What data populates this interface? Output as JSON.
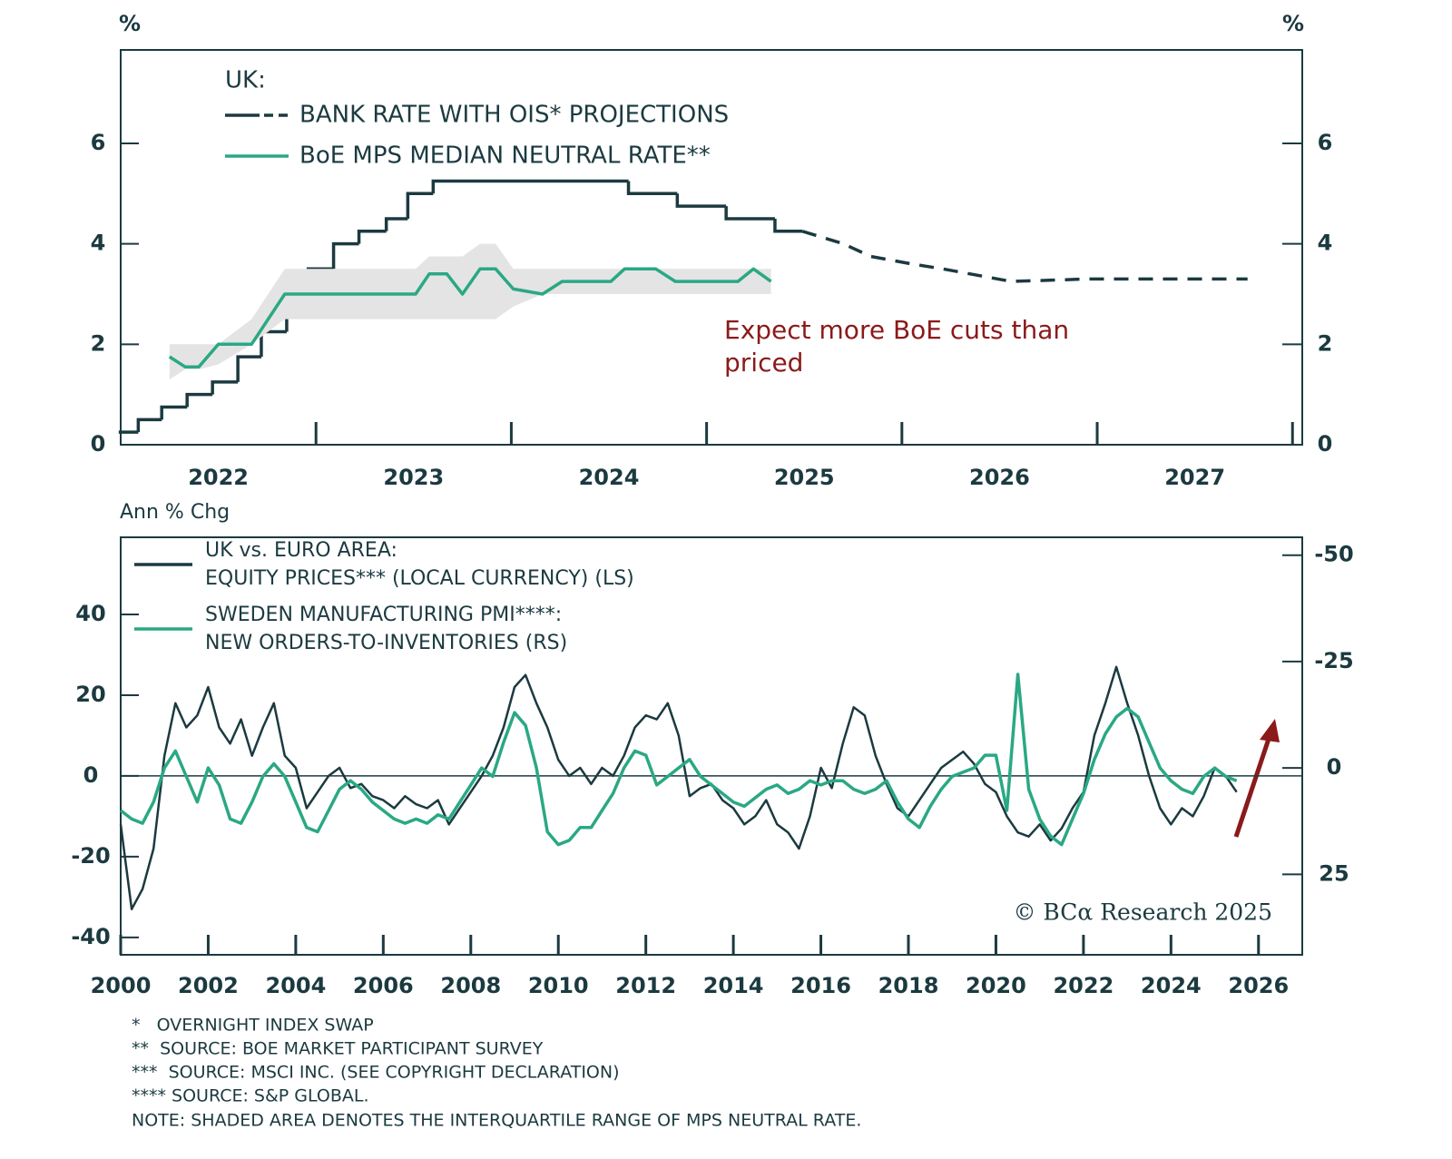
{
  "chart_data": [
    {
      "type": "line",
      "y_unit_left": "%",
      "y_unit_right": "%",
      "legend_title": "UK:",
      "xlim": [
        2022,
        2028.05
      ],
      "xticks": [
        {
          "value": 2022.5,
          "label": "2022"
        },
        {
          "value": 2023.5,
          "label": "2023"
        },
        {
          "value": 2024.5,
          "label": "2024"
        },
        {
          "value": 2025.5,
          "label": "2025"
        },
        {
          "value": 2026.5,
          "label": "2026"
        },
        {
          "value": 2027.5,
          "label": "2027"
        }
      ],
      "year_marks": [
        2023,
        2024,
        2025,
        2026,
        2027,
        2028
      ],
      "ylim": [
        0,
        7.86
      ],
      "yticks": [
        0,
        2,
        4,
        6
      ],
      "y2lim": [
        0,
        7.86
      ],
      "y2ticks": [
        0,
        2,
        4,
        6
      ],
      "series": [
        {
          "name": "BANK RATE WITH OIS* PROJECTIONS",
          "color": "#1b3a40",
          "step": true,
          "x": [
            2021.99,
            2022.09,
            2022.21,
            2022.34,
            2022.47,
            2022.6,
            2022.72,
            2022.85,
            2022.96,
            2023.09,
            2023.22,
            2023.36,
            2023.47,
            2023.6,
            2024.6,
            2024.85,
            2025.1,
            2025.35,
            2025.49
          ],
          "values": [
            0.25,
            0.5,
            0.75,
            1.0,
            1.25,
            1.75,
            2.25,
            3.0,
            3.5,
            4.0,
            4.25,
            4.5,
            5.0,
            5.25,
            5.0,
            4.75,
            4.5,
            4.25,
            4.25
          ],
          "projection_x": [
            2025.49,
            2025.7,
            2025.84,
            2026.05,
            2026.21,
            2026.56,
            2026.95,
            2027.77
          ],
          "projection_values": [
            4.25,
            4.0,
            3.75,
            3.6,
            3.5,
            3.25,
            3.3,
            3.3
          ]
        },
        {
          "name": "BoE MPS MEDIAN NEUTRAL RATE**",
          "color": "#2aa884",
          "band_color": "#e4e4e4",
          "x": [
            2022.25,
            2022.33,
            2022.4,
            2022.5,
            2022.67,
            2022.84,
            2023.51,
            2023.58,
            2023.67,
            2023.75,
            2023.84,
            2023.92,
            2024.01,
            2024.16,
            2024.26,
            2024.51,
            2024.58,
            2024.74,
            2024.84,
            2025.16,
            2025.24,
            2025.33
          ],
          "values": [
            1.75,
            1.55,
            1.55,
            2.0,
            2.0,
            3.0,
            3.0,
            3.4,
            3.4,
            3.0,
            3.5,
            3.5,
            3.1,
            3.0,
            3.25,
            3.25,
            3.5,
            3.5,
            3.25,
            3.25,
            3.5,
            3.25
          ],
          "band_low": [
            1.3,
            1.5,
            1.5,
            1.6,
            2.0,
            2.5,
            2.5,
            2.5,
            2.5,
            2.5,
            2.5,
            2.5,
            2.75,
            3.0,
            3.0,
            3.0,
            3.0,
            3.0,
            3.0,
            3.0,
            3.0,
            3.0
          ],
          "band_high": [
            2.0,
            2.0,
            2.0,
            2.0,
            2.5,
            3.5,
            3.5,
            3.75,
            3.75,
            3.75,
            4.0,
            4.0,
            3.5,
            3.5,
            3.5,
            3.5,
            3.5,
            3.5,
            3.5,
            3.5,
            3.5,
            3.5
          ]
        }
      ],
      "annotation": {
        "lines": [
          "Expect more BoE cuts than",
          "priced"
        ],
        "color": "#8b1a1a"
      }
    },
    {
      "type": "line",
      "y_label": "Ann % Chg",
      "xlim": [
        2000,
        2027
      ],
      "xticks": [
        2000,
        2002,
        2004,
        2006,
        2008,
        2010,
        2012,
        2014,
        2016,
        2018,
        2020,
        2022,
        2024,
        2026
      ],
      "ylim": [
        -44.3,
        59.1
      ],
      "yticks": [
        -40,
        -20,
        0,
        20,
        40
      ],
      "y2lim": [
        43.9,
        -54.2
      ],
      "y2ticks": [
        -50,
        -25,
        0,
        25
      ],
      "zero_line": true,
      "x": [
        2000,
        2000.25,
        2000.5,
        2000.75,
        2001,
        2001.25,
        2001.5,
        2001.75,
        2002,
        2002.25,
        2002.5,
        2002.75,
        2003,
        2003.25,
        2003.5,
        2003.75,
        2004,
        2004.25,
        2004.5,
        2004.75,
        2005,
        2005.25,
        2005.5,
        2005.75,
        2006,
        2006.25,
        2006.5,
        2006.75,
        2007,
        2007.25,
        2007.5,
        2007.75,
        2008,
        2008.25,
        2008.5,
        2008.75,
        2009,
        2009.25,
        2009.5,
        2009.75,
        2010,
        2010.25,
        2010.5,
        2010.75,
        2011,
        2011.25,
        2011.5,
        2011.75,
        2012,
        2012.25,
        2012.5,
        2012.75,
        2013,
        2013.25,
        2013.5,
        2013.75,
        2014,
        2014.25,
        2014.5,
        2014.75,
        2015,
        2015.25,
        2015.5,
        2015.75,
        2016,
        2016.25,
        2016.5,
        2016.75,
        2017,
        2017.25,
        2017.5,
        2017.75,
        2018,
        2018.25,
        2018.5,
        2018.75,
        2019,
        2019.25,
        2019.5,
        2019.75,
        2020,
        2020.25,
        2020.5,
        2020.75,
        2021,
        2021.25,
        2021.5,
        2021.75,
        2022,
        2022.25,
        2022.5,
        2022.75,
        2023,
        2023.25,
        2023.5,
        2023.75,
        2024,
        2024.25,
        2024.5,
        2024.75,
        2025,
        2025.25,
        2025.5
      ],
      "series": [
        {
          "name": [
            "UK vs. EURO AREA:",
            "EQUITY PRICES*** (LOCAL CURRENCY) (LS)"
          ],
          "color": "#1b3a40",
          "values": [
            -12,
            -33,
            -28,
            -18,
            5,
            18,
            12,
            15,
            22,
            12,
            8,
            14,
            5,
            12,
            18,
            5,
            2,
            -8,
            -4,
            0,
            2,
            -3,
            -2,
            -5,
            -6,
            -8,
            -5,
            -7,
            -8,
            -6,
            -12,
            -8,
            -4,
            0,
            5,
            12,
            22,
            25,
            18,
            12,
            4,
            0,
            2,
            -2,
            2,
            0,
            5,
            12,
            15,
            14,
            18,
            10,
            -5,
            -3,
            -2,
            -6,
            -8,
            -12,
            -10,
            -6,
            -12,
            -14,
            -18,
            -10,
            2,
            -3,
            8,
            17,
            15,
            5,
            -2,
            -8,
            -10,
            -6,
            -2,
            2,
            4,
            6,
            3,
            -2,
            -4,
            -10,
            -14,
            -15,
            -12,
            -16,
            -13,
            -8,
            -4,
            10,
            18,
            27,
            18,
            10,
            0,
            -8,
            -12,
            -8,
            -10,
            -5,
            2,
            0,
            -4
          ]
        },
        {
          "name": [
            "SWEDEN MANUFACTURING PMI****:",
            "NEW ORDERS-TO-INVENTORIES (RS)"
          ],
          "color": "#2aa884",
          "axis": "y2",
          "values": [
            10,
            12,
            13,
            8,
            0,
            -4,
            2,
            8,
            0,
            4,
            12,
            13,
            8,
            2,
            -1,
            2,
            8,
            14,
            15,
            10,
            5,
            3,
            5,
            8,
            10,
            12,
            13,
            12,
            13,
            11,
            12,
            8,
            4,
            0,
            2,
            -6,
            -13,
            -10,
            0,
            15,
            18,
            17,
            14,
            14,
            10,
            6,
            0,
            -4,
            -3,
            4,
            2,
            0,
            -2,
            2,
            4,
            6,
            8,
            9,
            7,
            5,
            4,
            6,
            5,
            3,
            4,
            3,
            3,
            5,
            6,
            5,
            3,
            8,
            12,
            14,
            9,
            5,
            2,
            1,
            0,
            -3,
            -3,
            10,
            -22,
            5,
            12,
            16,
            18,
            12,
            6,
            -2,
            -8,
            -12,
            -14,
            -12,
            -6,
            0,
            3,
            5,
            6,
            2,
            0,
            2,
            3
          ]
        }
      ],
      "credit": "© BCα Research 2025"
    }
  ],
  "footnotes": [
    "*   OVERNIGHT INDEX SWAP",
    "**  SOURCE: BOE MARKET PARTICIPANT SURVEY",
    "***  SOURCE: MSCI INC. (SEE COPYRIGHT DECLARATION)",
    "**** SOURCE: S&P GLOBAL.",
    "NOTE: SHADED AREA DENOTES THE INTERQUARTILE RANGE OF MPS NEUTRAL RATE."
  ]
}
